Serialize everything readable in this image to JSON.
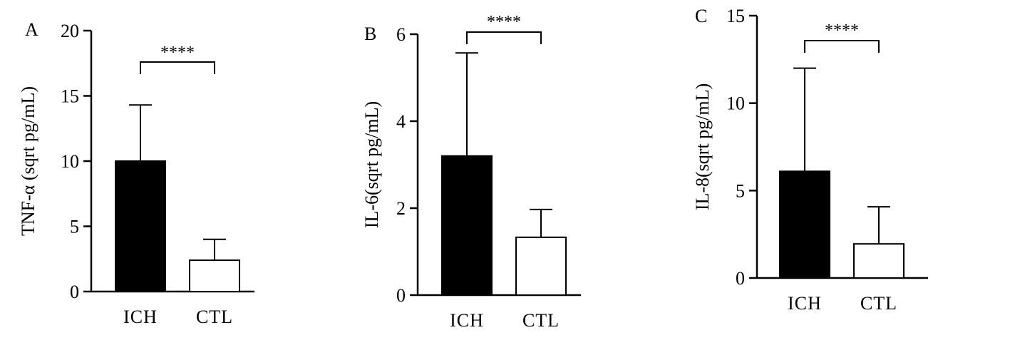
{
  "chart_data": [
    {
      "type": "bar",
      "panel": "A",
      "categories": [
        "ICH",
        "CTL"
      ],
      "values": [
        10.0,
        2.4
      ],
      "error_upper": [
        14.3,
        4.0
      ],
      "ylabel": "TNF-α (sqrt pg/mL)",
      "ylim": [
        0,
        20
      ],
      "yticks": [
        0,
        5,
        10,
        15,
        20
      ],
      "significance": "****",
      "bar_colors": [
        "#000000",
        "#ffffff"
      ]
    },
    {
      "type": "bar",
      "panel": "B",
      "categories": [
        "ICH",
        "CTL"
      ],
      "values": [
        3.2,
        1.33
      ],
      "error_upper": [
        5.57,
        1.97
      ],
      "ylabel": "IL-6(sqrt pg/mL)",
      "ylim": [
        0,
        6
      ],
      "yticks": [
        0,
        2,
        4,
        6
      ],
      "significance": "****",
      "bar_colors": [
        "#000000",
        "#ffffff"
      ]
    },
    {
      "type": "bar",
      "panel": "C",
      "categories": [
        "ICH",
        "CTL"
      ],
      "values": [
        6.1,
        1.95
      ],
      "error_upper": [
        12.0,
        4.07
      ],
      "ylabel": "IL-8(sqrt pg/mL)",
      "ylim": [
        0,
        15
      ],
      "yticks": [
        0,
        5,
        10,
        15
      ],
      "significance": "****",
      "bar_colors": [
        "#000000",
        "#ffffff"
      ]
    }
  ]
}
